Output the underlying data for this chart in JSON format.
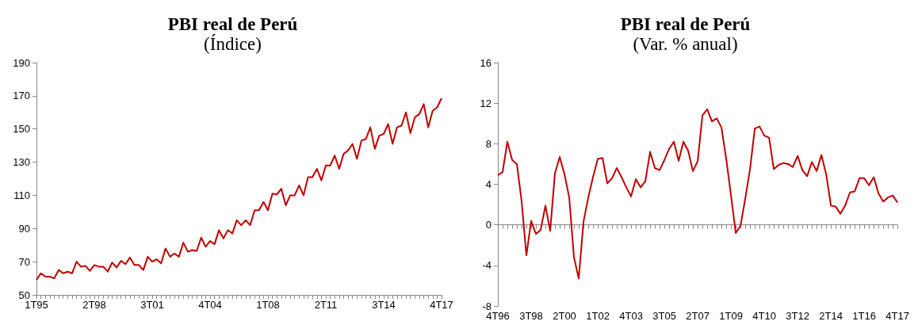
{
  "chart_data": [
    {
      "type": "line",
      "title": "PBI real de Perú",
      "subtitle": "(Índice)",
      "categories": [
        "1T95",
        null,
        null,
        null,
        null,
        null,
        null,
        null,
        null,
        null,
        null,
        null,
        null,
        "2T98",
        null,
        null,
        null,
        null,
        null,
        null,
        null,
        null,
        null,
        null,
        null,
        null,
        "3T01",
        null,
        null,
        null,
        null,
        null,
        null,
        null,
        null,
        null,
        null,
        null,
        null,
        "4T04",
        null,
        null,
        null,
        null,
        null,
        null,
        null,
        null,
        null,
        null,
        null,
        null,
        "1T08",
        null,
        null,
        null,
        null,
        null,
        null,
        null,
        null,
        null,
        null,
        null,
        null,
        "2T11",
        null,
        null,
        null,
        null,
        null,
        null,
        null,
        null,
        null,
        null,
        null,
        null,
        "3T14",
        null,
        null,
        null,
        null,
        null,
        null,
        null,
        null,
        null,
        null,
        null,
        null,
        "4T17"
      ],
      "series": [
        {
          "color": "#c00000",
          "values": [
            59,
            63,
            61,
            61,
            60,
            65,
            63,
            64,
            63,
            70,
            67,
            67.5,
            64.5,
            68,
            67,
            67,
            64,
            69.5,
            66.5,
            70.5,
            68.5,
            72.5,
            68,
            68,
            65,
            73,
            70,
            71.5,
            69,
            78,
            73,
            75,
            73,
            81.5,
            76,
            77,
            76.5,
            84.5,
            79,
            82.5,
            80.5,
            89,
            84,
            89,
            87,
            95,
            92,
            95,
            92,
            101,
            101,
            106,
            101,
            111,
            110.5,
            114,
            104,
            110,
            110,
            116,
            110,
            121,
            121,
            126,
            119,
            128,
            128,
            134,
            126,
            135,
            137,
            141,
            132,
            143,
            144,
            151,
            138,
            146,
            147,
            153,
            141,
            151,
            152,
            160,
            147.5,
            157,
            159,
            165,
            151,
            161,
            163,
            168.5
          ]
        }
      ],
      "ylim": [
        50,
        190
      ],
      "yticks": [
        50,
        70,
        90,
        110,
        130,
        150,
        170,
        190
      ]
    },
    {
      "type": "line",
      "title": "PBI real de Perú",
      "subtitle": "(Var. % anual)",
      "categories": [
        "4T96",
        null,
        null,
        null,
        null,
        null,
        null,
        "3T98",
        null,
        null,
        null,
        null,
        null,
        null,
        "2T00",
        null,
        null,
        null,
        null,
        null,
        null,
        "1T02",
        null,
        null,
        null,
        null,
        null,
        null,
        "4T03",
        null,
        null,
        null,
        null,
        null,
        null,
        "3T05",
        null,
        null,
        null,
        null,
        null,
        null,
        "2T07",
        null,
        null,
        null,
        null,
        null,
        null,
        "1T09",
        null,
        null,
        null,
        null,
        null,
        null,
        "4T10",
        null,
        null,
        null,
        null,
        null,
        null,
        "3T12",
        null,
        null,
        null,
        null,
        null,
        null,
        "2T14",
        null,
        null,
        null,
        null,
        null,
        null,
        "1T16",
        null,
        null,
        null,
        null,
        null,
        null,
        "4T17"
      ],
      "series": [
        {
          "color": "#c00000",
          "values": [
            4.9,
            5.2,
            8.2,
            6.4,
            6.0,
            2.3,
            -3.0,
            0.4,
            -0.9,
            -0.5,
            1.9,
            -0.6,
            5.1,
            6.7,
            5.0,
            2.7,
            -3.2,
            -5.3,
            0.3,
            2.7,
            4.7,
            6.5,
            6.6,
            4.1,
            4.6,
            5.6,
            4.7,
            3.7,
            2.8,
            4.5,
            3.7,
            4.3,
            7.2,
            5.6,
            5.4,
            6.4,
            7.5,
            8.2,
            6.3,
            8.2,
            7.3,
            5.3,
            6.3,
            10.8,
            11.4,
            10.2,
            10.5,
            9.6,
            6.5,
            2.9,
            -0.8,
            -0.1,
            2.6,
            5.5,
            9.5,
            9.7,
            8.8,
            8.6,
            5.5,
            5.9,
            6.1,
            6.0,
            5.7,
            6.8,
            5.4,
            4.8,
            6.2,
            5.3,
            6.9,
            5.0,
            1.9,
            1.8,
            1.1,
            1.9,
            3.2,
            3.3,
            4.6,
            4.6,
            3.9,
            4.7,
            3.1,
            2.3,
            2.7,
            2.9,
            2.2
          ]
        }
      ],
      "ylim": [
        -8,
        16
      ],
      "yticks": [
        -8,
        -4,
        0,
        4,
        8,
        12,
        16
      ]
    }
  ]
}
